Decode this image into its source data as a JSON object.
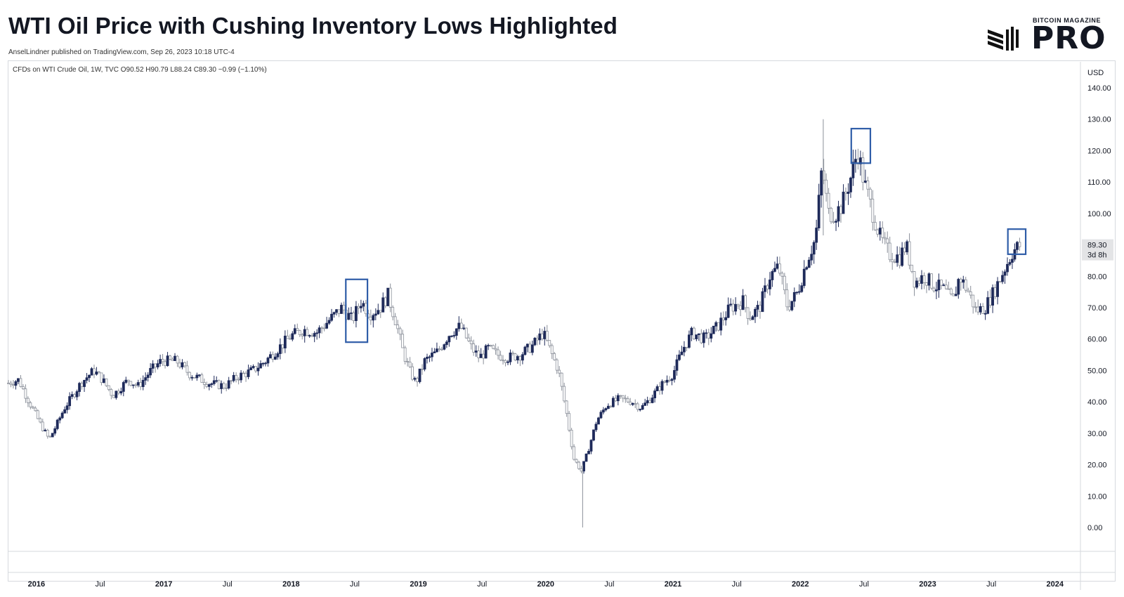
{
  "header": {
    "title": "WTI Oil Price with Cushing Inventory Lows Highlighted",
    "byline": "AnselLindner published on TradingView.com, Sep 26, 2023 10:18 UTC-4"
  },
  "logo": {
    "small": "BITCOIN MAGAZINE",
    "big": "PRO"
  },
  "legend": {
    "text": "CFDs on WTI Crude Oil, 1W, TVC  O90.52  H90.79  L88.24  C89.30  −0.99 (−1.10%)"
  },
  "colors": {
    "up": "#1e2a5a",
    "down": "#8a8f99",
    "highlight": "#2f5da8",
    "grid": "#e6e8ec"
  },
  "chart_data": {
    "type": "candlestick",
    "title": "WTI Oil Price with Cushing Inventory Lows Highlighted",
    "ylabel": "USD",
    "ylim": [
      -7,
      145
    ],
    "y_ticks": [
      "140.00",
      "130.00",
      "120.00",
      "110.00",
      "100.00",
      "89.30",
      "80.00",
      "70.00",
      "60.00",
      "50.00",
      "40.00",
      "30.00",
      "20.00",
      "10.00",
      "0.00"
    ],
    "y_tick_values": [
      140,
      130,
      120,
      110,
      100,
      80,
      70,
      60,
      50,
      40,
      30,
      20,
      10,
      0
    ],
    "last_price": "89.30",
    "countdown": "3d 8h",
    "x_ticks": [
      {
        "label": "2016",
        "t": 2016.0,
        "bold": true
      },
      {
        "label": "Jul",
        "t": 2016.5,
        "bold": false
      },
      {
        "label": "2017",
        "t": 2017.0,
        "bold": true
      },
      {
        "label": "Jul",
        "t": 2017.5,
        "bold": false
      },
      {
        "label": "2018",
        "t": 2018.0,
        "bold": true
      },
      {
        "label": "Jul",
        "t": 2018.5,
        "bold": false
      },
      {
        "label": "2019",
        "t": 2019.0,
        "bold": true
      },
      {
        "label": "Jul",
        "t": 2019.5,
        "bold": false
      },
      {
        "label": "2020",
        "t": 2020.0,
        "bold": true
      },
      {
        "label": "Jul",
        "t": 2020.5,
        "bold": false
      },
      {
        "label": "2021",
        "t": 2021.0,
        "bold": true
      },
      {
        "label": "Jul",
        "t": 2021.5,
        "bold": false
      },
      {
        "label": "2022",
        "t": 2022.0,
        "bold": true
      },
      {
        "label": "Jul",
        "t": 2022.5,
        "bold": false
      },
      {
        "label": "2023",
        "t": 2023.0,
        "bold": true
      },
      {
        "label": "Jul",
        "t": 2023.5,
        "bold": false
      },
      {
        "label": "2024",
        "t": 2024.0,
        "bold": true
      }
    ],
    "xlim": [
      2015.78,
      2024.2
    ],
    "price_path": [
      [
        2015.78,
        46
      ],
      [
        2015.86,
        47
      ],
      [
        2015.93,
        41
      ],
      [
        2016.03,
        33
      ],
      [
        2016.1,
        28
      ],
      [
        2016.15,
        32
      ],
      [
        2016.22,
        38
      ],
      [
        2016.35,
        46
      ],
      [
        2016.45,
        50
      ],
      [
        2016.52,
        47
      ],
      [
        2016.6,
        42
      ],
      [
        2016.72,
        47
      ],
      [
        2016.8,
        45
      ],
      [
        2016.9,
        50
      ],
      [
        2016.98,
        53
      ],
      [
        2017.1,
        53
      ],
      [
        2017.2,
        49
      ],
      [
        2017.35,
        46
      ],
      [
        2017.48,
        45
      ],
      [
        2017.58,
        48
      ],
      [
        2017.7,
        50
      ],
      [
        2017.8,
        53
      ],
      [
        2017.9,
        57
      ],
      [
        2018.0,
        61
      ],
      [
        2018.1,
        63
      ],
      [
        2018.2,
        62
      ],
      [
        2018.3,
        66
      ],
      [
        2018.4,
        70
      ],
      [
        2018.48,
        66
      ],
      [
        2018.55,
        72
      ],
      [
        2018.62,
        68
      ],
      [
        2018.7,
        70
      ],
      [
        2018.76,
        74
      ],
      [
        2018.82,
        66
      ],
      [
        2018.88,
        56
      ],
      [
        2018.93,
        50
      ],
      [
        2018.98,
        46
      ],
      [
        2019.05,
        53
      ],
      [
        2019.15,
        56
      ],
      [
        2019.25,
        62
      ],
      [
        2019.33,
        64
      ],
      [
        2019.42,
        57
      ],
      [
        2019.48,
        54
      ],
      [
        2019.55,
        57
      ],
      [
        2019.62,
        55
      ],
      [
        2019.7,
        54
      ],
      [
        2019.8,
        55
      ],
      [
        2019.9,
        58
      ],
      [
        2019.98,
        62
      ],
      [
        2020.05,
        55
      ],
      [
        2020.1,
        50
      ],
      [
        2020.17,
        35
      ],
      [
        2020.22,
        22
      ],
      [
        2020.28,
        18
      ],
      [
        2020.33,
        24
      ],
      [
        2020.4,
        34
      ],
      [
        2020.48,
        39
      ],
      [
        2020.58,
        41
      ],
      [
        2020.68,
        40
      ],
      [
        2020.75,
        38
      ],
      [
        2020.82,
        41
      ],
      [
        2020.9,
        45
      ],
      [
        2021.0,
        49
      ],
      [
        2021.08,
        57
      ],
      [
        2021.15,
        62
      ],
      [
        2021.25,
        60
      ],
      [
        2021.35,
        64
      ],
      [
        2021.45,
        70
      ],
      [
        2021.55,
        72
      ],
      [
        2021.6,
        67
      ],
      [
        2021.68,
        70
      ],
      [
        2021.76,
        80
      ],
      [
        2021.83,
        83
      ],
      [
        2021.9,
        70
      ],
      [
        2021.98,
        75
      ],
      [
        2022.05,
        85
      ],
      [
        2022.12,
        92
      ],
      [
        2022.17,
        115
      ],
      [
        2022.22,
        100
      ],
      [
        2022.28,
        100
      ],
      [
        2022.33,
        103
      ],
      [
        2022.4,
        112
      ],
      [
        2022.45,
        120
      ],
      [
        2022.5,
        110
      ],
      [
        2022.57,
        100
      ],
      [
        2022.63,
        92
      ],
      [
        2022.7,
        87
      ],
      [
        2022.78,
        86
      ],
      [
        2022.83,
        90
      ],
      [
        2022.9,
        78
      ],
      [
        2022.97,
        80
      ],
      [
        2023.05,
        77
      ],
      [
        2023.12,
        76
      ],
      [
        2023.2,
        72
      ],
      [
        2023.25,
        80
      ],
      [
        2023.32,
        75
      ],
      [
        2023.38,
        69
      ],
      [
        2023.45,
        70
      ],
      [
        2023.52,
        75
      ],
      [
        2023.6,
        82
      ],
      [
        2023.67,
        88
      ],
      [
        2023.73,
        90
      ]
    ],
    "highlights": [
      {
        "t0": 2018.43,
        "t1": 2018.6,
        "lo": 59,
        "hi": 79
      },
      {
        "t0": 2022.4,
        "t1": 2022.55,
        "lo": 116,
        "hi": 127
      },
      {
        "t0": 2023.63,
        "t1": 2023.77,
        "lo": 87,
        "hi": 95
      }
    ],
    "special_wicks": [
      {
        "t": 2020.29,
        "lo": 0,
        "hi": 20
      },
      {
        "t": 2022.18,
        "lo": 93,
        "hi": 130
      }
    ]
  }
}
